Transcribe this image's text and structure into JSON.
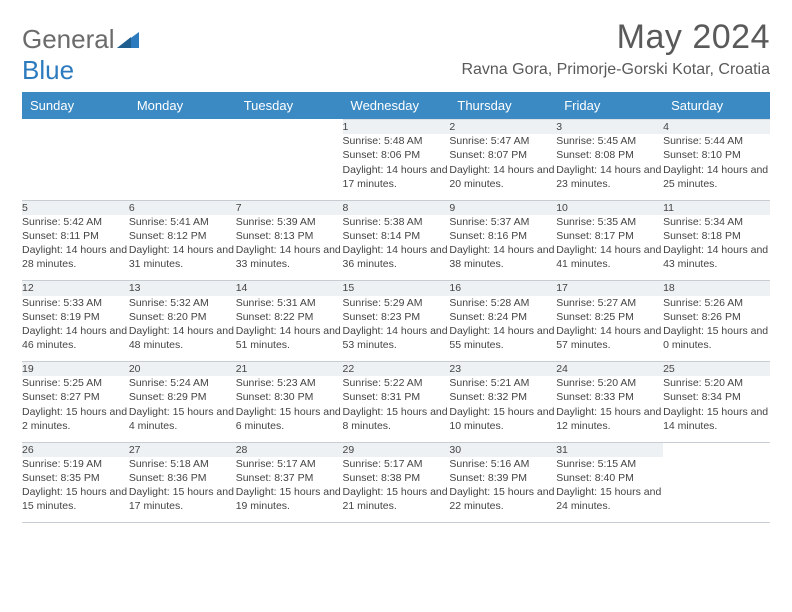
{
  "brand": {
    "word1": "General",
    "word2": "Blue"
  },
  "title": "May 2024",
  "location": "Ravna Gora, Primorje-Gorski Kotar, Croatia",
  "colors": {
    "header_bg": "#3b8ac4",
    "header_text": "#ffffff",
    "daynum_bg": "#eef1f3",
    "border": "#c7cdd2",
    "text": "#444444",
    "title_text": "#5a5a5a"
  },
  "weekdays": [
    "Sunday",
    "Monday",
    "Tuesday",
    "Wednesday",
    "Thursday",
    "Friday",
    "Saturday"
  ],
  "weeks": [
    {
      "nums": [
        "",
        "",
        "",
        "1",
        "2",
        "3",
        "4"
      ],
      "cells": [
        null,
        null,
        null,
        {
          "sunrise": "5:48 AM",
          "sunset": "8:06 PM",
          "daylight": "14 hours and 17 minutes."
        },
        {
          "sunrise": "5:47 AM",
          "sunset": "8:07 PM",
          "daylight": "14 hours and 20 minutes."
        },
        {
          "sunrise": "5:45 AM",
          "sunset": "8:08 PM",
          "daylight": "14 hours and 23 minutes."
        },
        {
          "sunrise": "5:44 AM",
          "sunset": "8:10 PM",
          "daylight": "14 hours and 25 minutes."
        }
      ]
    },
    {
      "nums": [
        "5",
        "6",
        "7",
        "8",
        "9",
        "10",
        "11"
      ],
      "cells": [
        {
          "sunrise": "5:42 AM",
          "sunset": "8:11 PM",
          "daylight": "14 hours and 28 minutes."
        },
        {
          "sunrise": "5:41 AM",
          "sunset": "8:12 PM",
          "daylight": "14 hours and 31 minutes."
        },
        {
          "sunrise": "5:39 AM",
          "sunset": "8:13 PM",
          "daylight": "14 hours and 33 minutes."
        },
        {
          "sunrise": "5:38 AM",
          "sunset": "8:14 PM",
          "daylight": "14 hours and 36 minutes."
        },
        {
          "sunrise": "5:37 AM",
          "sunset": "8:16 PM",
          "daylight": "14 hours and 38 minutes."
        },
        {
          "sunrise": "5:35 AM",
          "sunset": "8:17 PM",
          "daylight": "14 hours and 41 minutes."
        },
        {
          "sunrise": "5:34 AM",
          "sunset": "8:18 PM",
          "daylight": "14 hours and 43 minutes."
        }
      ]
    },
    {
      "nums": [
        "12",
        "13",
        "14",
        "15",
        "16",
        "17",
        "18"
      ],
      "cells": [
        {
          "sunrise": "5:33 AM",
          "sunset": "8:19 PM",
          "daylight": "14 hours and 46 minutes."
        },
        {
          "sunrise": "5:32 AM",
          "sunset": "8:20 PM",
          "daylight": "14 hours and 48 minutes."
        },
        {
          "sunrise": "5:31 AM",
          "sunset": "8:22 PM",
          "daylight": "14 hours and 51 minutes."
        },
        {
          "sunrise": "5:29 AM",
          "sunset": "8:23 PM",
          "daylight": "14 hours and 53 minutes."
        },
        {
          "sunrise": "5:28 AM",
          "sunset": "8:24 PM",
          "daylight": "14 hours and 55 minutes."
        },
        {
          "sunrise": "5:27 AM",
          "sunset": "8:25 PM",
          "daylight": "14 hours and 57 minutes."
        },
        {
          "sunrise": "5:26 AM",
          "sunset": "8:26 PM",
          "daylight": "15 hours and 0 minutes."
        }
      ]
    },
    {
      "nums": [
        "19",
        "20",
        "21",
        "22",
        "23",
        "24",
        "25"
      ],
      "cells": [
        {
          "sunrise": "5:25 AM",
          "sunset": "8:27 PM",
          "daylight": "15 hours and 2 minutes."
        },
        {
          "sunrise": "5:24 AM",
          "sunset": "8:29 PM",
          "daylight": "15 hours and 4 minutes."
        },
        {
          "sunrise": "5:23 AM",
          "sunset": "8:30 PM",
          "daylight": "15 hours and 6 minutes."
        },
        {
          "sunrise": "5:22 AM",
          "sunset": "8:31 PM",
          "daylight": "15 hours and 8 minutes."
        },
        {
          "sunrise": "5:21 AM",
          "sunset": "8:32 PM",
          "daylight": "15 hours and 10 minutes."
        },
        {
          "sunrise": "5:20 AM",
          "sunset": "8:33 PM",
          "daylight": "15 hours and 12 minutes."
        },
        {
          "sunrise": "5:20 AM",
          "sunset": "8:34 PM",
          "daylight": "15 hours and 14 minutes."
        }
      ]
    },
    {
      "nums": [
        "26",
        "27",
        "28",
        "29",
        "30",
        "31",
        ""
      ],
      "cells": [
        {
          "sunrise": "5:19 AM",
          "sunset": "8:35 PM",
          "daylight": "15 hours and 15 minutes."
        },
        {
          "sunrise": "5:18 AM",
          "sunset": "8:36 PM",
          "daylight": "15 hours and 17 minutes."
        },
        {
          "sunrise": "5:17 AM",
          "sunset": "8:37 PM",
          "daylight": "15 hours and 19 minutes."
        },
        {
          "sunrise": "5:17 AM",
          "sunset": "8:38 PM",
          "daylight": "15 hours and 21 minutes."
        },
        {
          "sunrise": "5:16 AM",
          "sunset": "8:39 PM",
          "daylight": "15 hours and 22 minutes."
        },
        {
          "sunrise": "5:15 AM",
          "sunset": "8:40 PM",
          "daylight": "15 hours and 24 minutes."
        },
        null
      ]
    }
  ],
  "labels": {
    "sunrise": "Sunrise: ",
    "sunset": "Sunset: ",
    "daylight": "Daylight: "
  }
}
